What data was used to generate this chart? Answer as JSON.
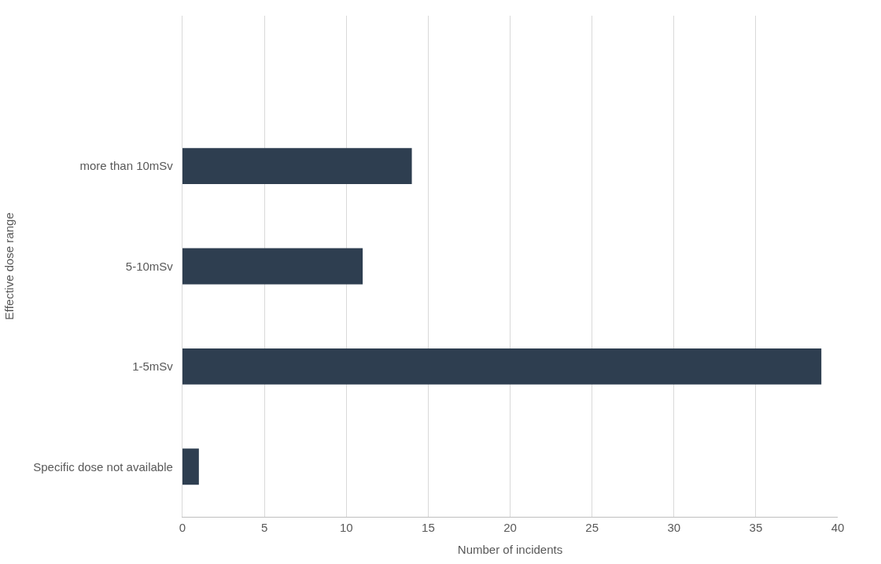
{
  "chart_data": {
    "type": "bar",
    "orientation": "horizontal",
    "xlabel": "Number of incidents",
    "ylabel": "Effective dose range",
    "categories": [
      null,
      "more than 10mSv",
      "5-10mSv",
      "1-5mSv",
      "Specific dose not available"
    ],
    "values": [
      null,
      14,
      11,
      39,
      1
    ],
    "color": "#2e3e50",
    "xlim": [
      0,
      40
    ],
    "xticks": [
      0,
      5,
      10,
      15,
      20,
      25,
      30,
      35,
      40
    ],
    "grid": "x",
    "legend": false
  }
}
